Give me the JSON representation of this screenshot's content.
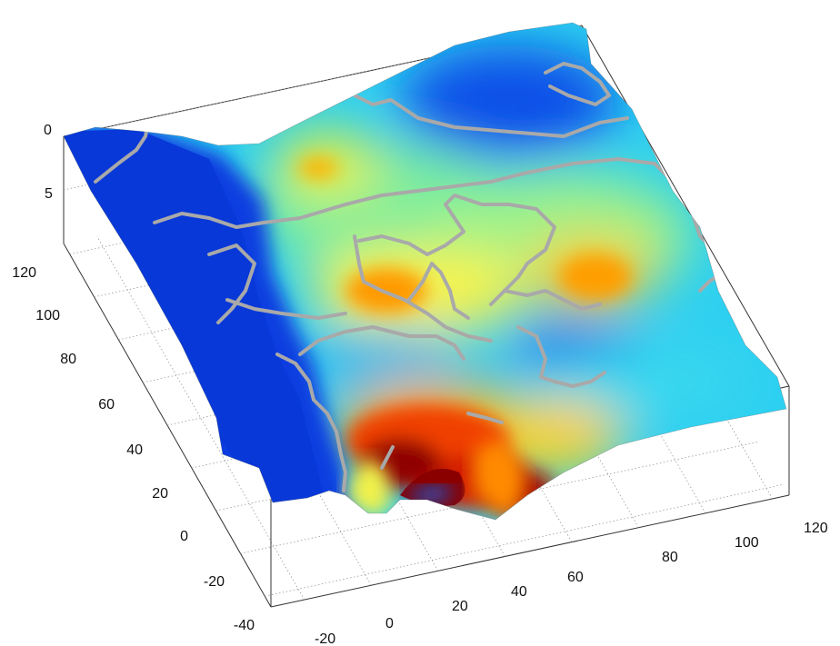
{
  "chart_data": {
    "type": "surface-3d",
    "title": "",
    "xlabel": "",
    "ylabel": "",
    "zlabel": "",
    "x_ticks": [
      "-20",
      "0",
      "20",
      "40",
      "60",
      "80",
      "100",
      "120"
    ],
    "y_ticks": [
      "-40",
      "-20",
      "0",
      "20",
      "40",
      "60",
      "80",
      "100",
      "120"
    ],
    "z_ticks": [
      "0",
      "5"
    ],
    "xlim": [
      -30,
      125
    ],
    "ylim": [
      -45,
      125
    ],
    "zlim": [
      0,
      10
    ],
    "z_axis_reversed": true,
    "grid": true,
    "colormap": "jet",
    "colormap_stops": [
      "#0033cc",
      "#0080ff",
      "#22d6f0",
      "#a8f08a",
      "#ffff33",
      "#ff9900",
      "#e02000",
      "#8a0000"
    ],
    "overlay": {
      "type": "map-borders",
      "color": "#a9a9a9"
    }
  }
}
